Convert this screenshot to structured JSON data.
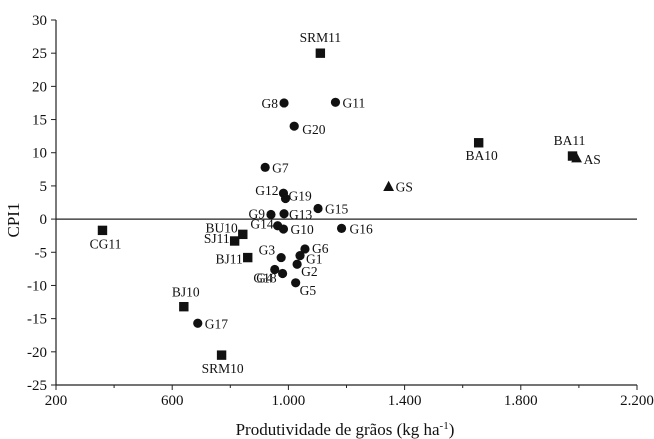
{
  "chart_data": {
    "type": "scatter",
    "title": "",
    "xlabel": "Produtividade de grãos (kg ha",
    "xlabel_sup": "-1",
    "xlabel_end": ")",
    "ylabel": "CPI1",
    "xlim": [
      200,
      2200
    ],
    "ylim": [
      -25,
      30
    ],
    "x_ticks": [
      200,
      600,
      1000,
      1400,
      1800,
      2200
    ],
    "x_tick_labels": [
      "200",
      "600",
      "1.000",
      "1.400",
      "1.800",
      "2.200"
    ],
    "y_ticks": [
      30,
      25,
      20,
      15,
      10,
      5,
      0,
      -5,
      -10,
      -15,
      -20,
      -25
    ],
    "y_tick_labels": [
      "30",
      "25",
      "20",
      "15",
      "10",
      "5",
      "0",
      "-5",
      "-10",
      "-15",
      "-20",
      "-25"
    ],
    "zero_line": true,
    "grid": false,
    "series": [
      {
        "marker": "circle",
        "points": [
          {
            "label": "G1",
            "x": 1040,
            "y": -5.5
          },
          {
            "label": "G2",
            "x": 1030,
            "y": -6.8
          },
          {
            "label": "G3",
            "x": 975,
            "y": -5.8
          },
          {
            "label": "G4",
            "x": 953,
            "y": -7.6
          },
          {
            "label": "G5",
            "x": 1025,
            "y": -9.6
          },
          {
            "label": "G6",
            "x": 1057,
            "y": -4.5
          },
          {
            "label": "G7",
            "x": 920,
            "y": 7.8
          },
          {
            "label": "G8",
            "x": 985,
            "y": 17.5
          },
          {
            "label": "G9",
            "x": 940,
            "y": 0.7
          },
          {
            "label": "G10",
            "x": 983,
            "y": -1.5
          },
          {
            "label": "G11",
            "x": 1162,
            "y": 17.6
          },
          {
            "label": "G12",
            "x": 983,
            "y": 3.9
          },
          {
            "label": "G13",
            "x": 985,
            "y": 0.8
          },
          {
            "label": "G14",
            "x": 963,
            "y": -1.0
          },
          {
            "label": "G15",
            "x": 1102,
            "y": 1.6
          },
          {
            "label": "G16",
            "x": 1183,
            "y": -1.4
          },
          {
            "label": "G17",
            "x": 688,
            "y": -15.7
          },
          {
            "label": "G18",
            "x": 980,
            "y": -8.2
          },
          {
            "label": "G19",
            "x": 990,
            "y": 3.1
          },
          {
            "label": "G20",
            "x": 1020,
            "y": 14.0
          }
        ]
      },
      {
        "marker": "square",
        "points": [
          {
            "label": "SRM11",
            "x": 1110,
            "y": 25.0
          },
          {
            "label": "BA10",
            "x": 1655,
            "y": 11.5
          },
          {
            "label": "BA11",
            "x": 1978,
            "y": 9.5
          },
          {
            "label": "CG11",
            "x": 360,
            "y": -1.7
          },
          {
            "label": "BU10",
            "x": 843,
            "y": -2.3
          },
          {
            "label": "SJ11",
            "x": 815,
            "y": -3.3
          },
          {
            "label": "BJ11",
            "x": 860,
            "y": -5.8
          },
          {
            "label": "BJ10",
            "x": 640,
            "y": -13.2
          },
          {
            "label": "SRM10",
            "x": 770,
            "y": -20.5
          }
        ]
      },
      {
        "marker": "triangle",
        "points": [
          {
            "label": "GS",
            "x": 1345,
            "y": 4.9
          },
          {
            "label": "AS",
            "x": 1992,
            "y": 9.2
          }
        ]
      }
    ]
  }
}
